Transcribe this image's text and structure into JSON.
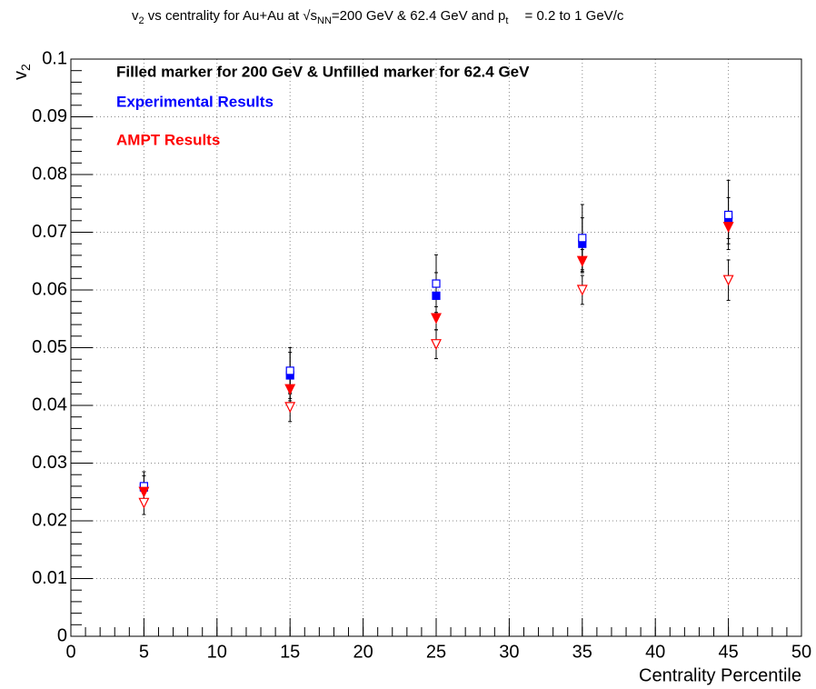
{
  "chart_data": {
    "type": "scatter",
    "title": [
      "v",
      "2",
      " vs centrality for Au+Au at ",
      "√s",
      "NN",
      "=200 GeV & 62.4 GeV and p",
      "t",
      " = 0.2 to 1 GeV/c"
    ],
    "ylabel": [
      "v",
      "2"
    ],
    "xlabel": "Centrality Percentile",
    "annotations": [
      {
        "text": "Filled marker for 200 GeV & Unfilled marker for 62.4 GeV",
        "color": "#000000"
      },
      {
        "text": "Experimental Results",
        "color": "#0000ff"
      },
      {
        "text": "AMPT Results",
        "color": "#ff0000"
      }
    ],
    "x": [
      5,
      15,
      25,
      35,
      45
    ],
    "series": [
      {
        "marker": "square",
        "filled": true,
        "color": "#0000ff",
        "values": [
          0.0258,
          0.0452,
          0.059,
          0.068,
          0.072
        ],
        "errors": [
          0.002,
          0.004,
          0.004,
          0.0045,
          0.004
        ]
      },
      {
        "marker": "square",
        "filled": false,
        "color": "#0000ff",
        "values": [
          0.026,
          0.046,
          0.0611,
          0.069,
          0.073
        ],
        "errors": [
          0.0025,
          0.004,
          0.005,
          0.0058,
          0.006
        ]
      },
      {
        "marker": "triangle-down",
        "filled": true,
        "color": "#ff0000",
        "values": [
          0.025,
          0.0428,
          0.0551,
          0.065,
          0.0709
        ],
        "errors": [
          0.0015,
          0.002,
          0.002,
          0.002,
          0.002
        ]
      },
      {
        "marker": "triangle-down",
        "filled": false,
        "color": "#ff0000",
        "values": [
          0.0231,
          0.0397,
          0.0506,
          0.06,
          0.0617
        ],
        "errors": [
          0.002,
          0.0025,
          0.0025,
          0.0025,
          0.0035
        ]
      }
    ],
    "xlim": [
      0,
      50
    ],
    "ylim": [
      0,
      0.1
    ],
    "xticks": [
      0,
      5,
      10,
      15,
      20,
      25,
      30,
      35,
      40,
      45,
      50
    ],
    "yticks": [
      0,
      0.01,
      0.02,
      0.03,
      0.04,
      0.05,
      0.06,
      0.07,
      0.08,
      0.09,
      0.1
    ],
    "xminorticks": [
      0,
      1,
      2,
      3,
      4,
      5,
      6,
      7,
      8,
      9,
      10,
      11,
      12,
      13,
      14,
      15,
      16,
      17,
      18,
      19,
      20,
      21,
      22,
      23,
      24,
      25,
      26,
      27,
      28,
      29,
      30,
      31,
      32,
      33,
      34,
      35,
      36,
      37,
      38,
      39,
      40,
      41,
      42,
      43,
      44,
      45,
      46,
      47,
      48,
      49,
      50
    ],
    "yminorticks": [
      0,
      0.002,
      0.004,
      0.006,
      0.008,
      0.01,
      0.012,
      0.014,
      0.016,
      0.018,
      0.02,
      0.022,
      0.024,
      0.026,
      0.028,
      0.03,
      0.032,
      0.034,
      0.036,
      0.038,
      0.04,
      0.042,
      0.044,
      0.046,
      0.048,
      0.05,
      0.052,
      0.054,
      0.056,
      0.058,
      0.06,
      0.062,
      0.064,
      0.066,
      0.068,
      0.07,
      0.072,
      0.074,
      0.076,
      0.078,
      0.08,
      0.082,
      0.084,
      0.086,
      0.088,
      0.09,
      0.092,
      0.094,
      0.096,
      0.098,
      0.1
    ],
    "grid": true,
    "error_color": "#000000"
  }
}
